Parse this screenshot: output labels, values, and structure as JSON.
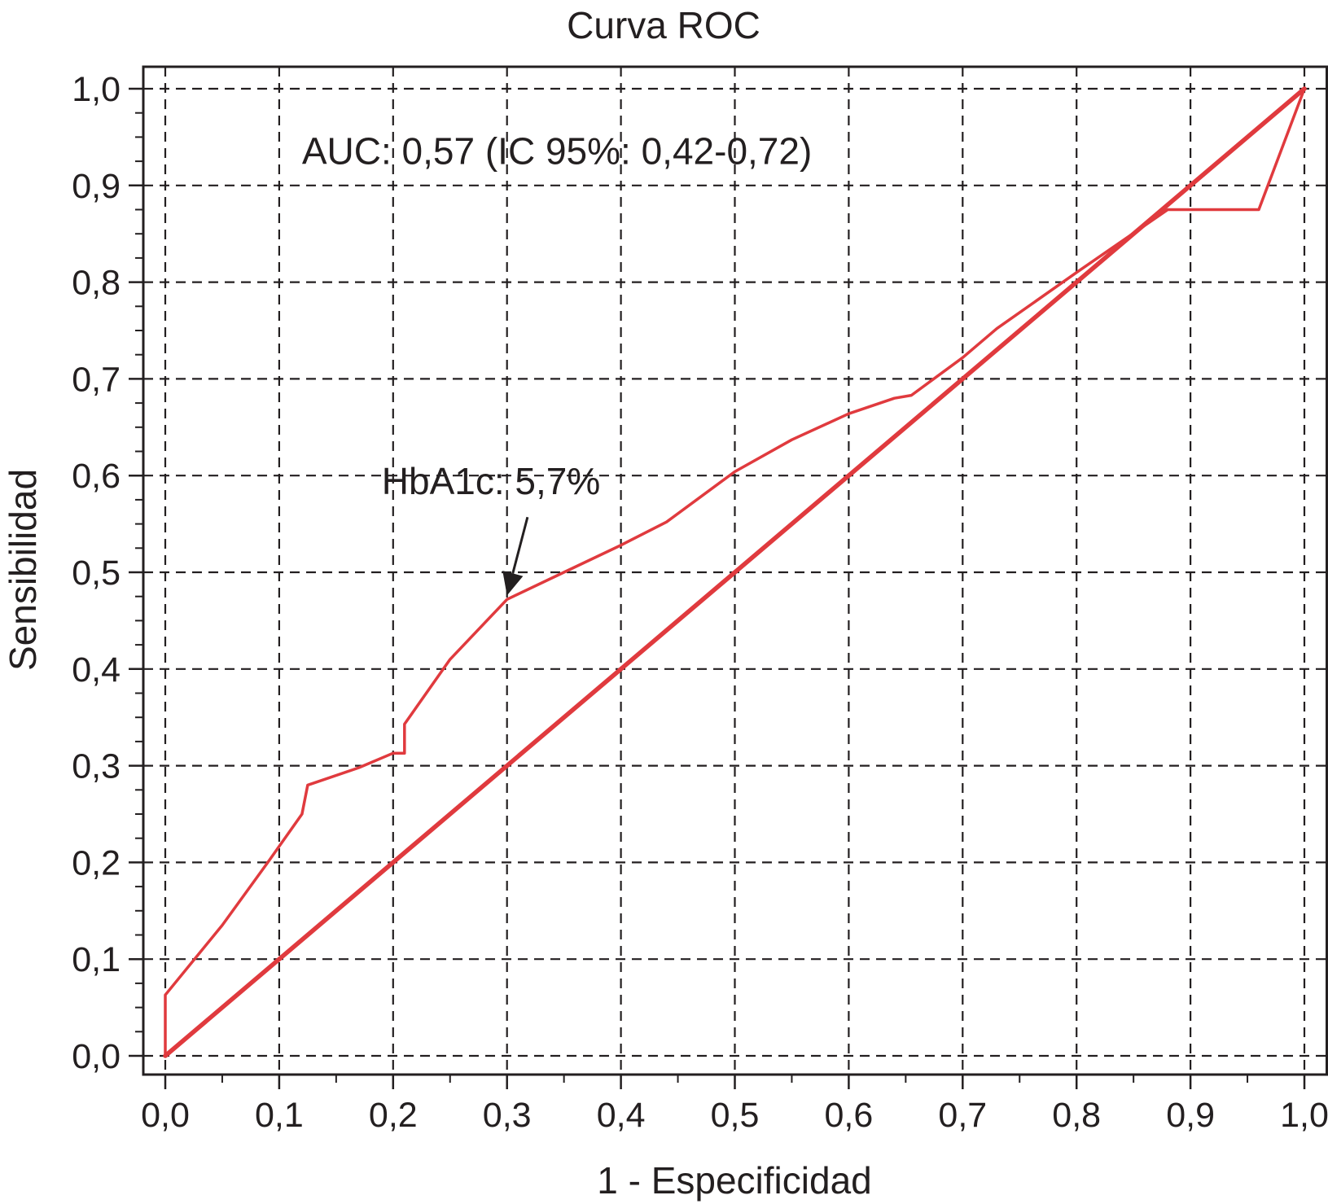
{
  "chart_data": {
    "type": "line",
    "title": "Curva ROC",
    "xlabel": "1 - Especificidad",
    "ylabel": "Sensibilidad",
    "xlim": [
      0,
      1
    ],
    "ylim": [
      0,
      1
    ],
    "x_ticks": [
      0.0,
      0.1,
      0.2,
      0.3,
      0.4,
      0.5,
      0.6,
      0.7,
      0.8,
      0.9,
      1.0
    ],
    "x_tick_labels": [
      "0,0",
      "0,1",
      "0,2",
      "0,3",
      "0,4",
      "0,5",
      "0,6",
      "0,7",
      "0,8",
      "0,9",
      "1,0"
    ],
    "y_ticks": [
      0.0,
      0.1,
      0.2,
      0.3,
      0.4,
      0.5,
      0.6,
      0.7,
      0.8,
      0.9,
      1.0
    ],
    "y_tick_labels": [
      "0,0",
      "0,1",
      "0,2",
      "0,3",
      "0,4",
      "0,5",
      "0,6",
      "0,7",
      "0,8",
      "0,9",
      "1,0"
    ],
    "grid": true,
    "grid_style": "dashed",
    "line_color": "#e03a3e",
    "annotation_color": "#231f20",
    "series": [
      {
        "x": [
          0.0,
          0.0,
          0.05,
          0.09,
          0.12,
          0.125,
          0.17,
          0.2,
          0.21,
          0.21,
          0.25,
          0.3,
          0.35,
          0.4,
          0.44,
          0.47,
          0.5,
          0.55,
          0.6,
          0.64,
          0.655,
          0.7,
          0.73,
          0.8,
          0.88,
          0.96,
          1.0
        ],
        "y": [
          0.0,
          0.063,
          0.135,
          0.2,
          0.25,
          0.28,
          0.298,
          0.313,
          0.313,
          0.343,
          0.41,
          0.472,
          0.5,
          0.528,
          0.552,
          0.578,
          0.604,
          0.637,
          0.664,
          0.68,
          0.683,
          0.722,
          0.752,
          0.81,
          0.875,
          0.875,
          1.0
        ]
      },
      {
        "x": [
          0.0,
          1.0
        ],
        "y": [
          0.0,
          1.0
        ]
      }
    ],
    "annotations": [
      {
        "text": "AUC: 0,57 (IC 95%: 0,42-0,72)",
        "x": 0.12,
        "y": 0.922
      },
      {
        "text": "HbA1c: 5,7%",
        "x": 0.19,
        "y": 0.581,
        "arrow_from": [
          0.318,
          0.557
        ],
        "arrow_to": [
          0.3,
          0.476
        ]
      }
    ]
  }
}
